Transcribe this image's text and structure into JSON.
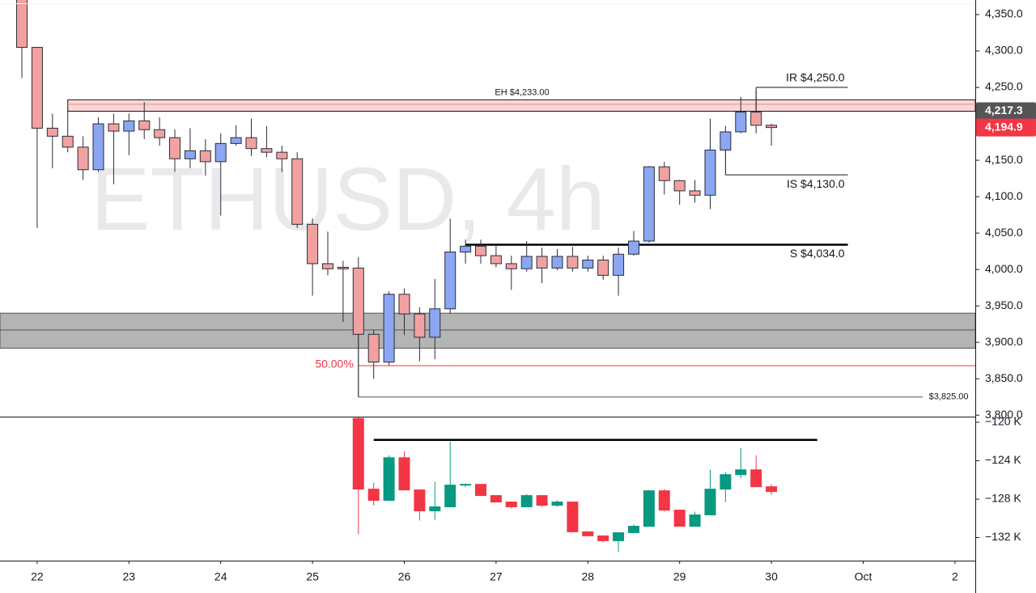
{
  "watermark": "ETHUSD, 4h",
  "chart_data": [
    {
      "type": "candlestick",
      "up_color": "#8ba6f2",
      "down_color": "#f2a1a1",
      "edge_color": "#2a2e39",
      "xlim": [
        -1.43,
        62.33
      ],
      "xticks": [
        {
          "value": 1,
          "label": "22"
        },
        {
          "value": 7,
          "label": "23"
        },
        {
          "value": 13,
          "label": "24"
        },
        {
          "value": 19,
          "label": "25"
        },
        {
          "value": 25,
          "label": "26"
        },
        {
          "value": 31,
          "label": "27"
        },
        {
          "value": 37,
          "label": "28"
        },
        {
          "value": 43,
          "label": "29"
        },
        {
          "value": 49,
          "label": "30"
        },
        {
          "value": 55,
          "label": "Oct"
        },
        {
          "value": 61,
          "label": "2"
        }
      ],
      "ylim": [
        3798,
        4370
      ],
      "yticks": [
        {
          "value": 3800,
          "label": "3,800.0"
        },
        {
          "value": 3850,
          "label": "3,850.0"
        },
        {
          "value": 3900,
          "label": "3,900.0"
        },
        {
          "value": 3950,
          "label": "3,950.0"
        },
        {
          "value": 4000,
          "label": "4,000.0"
        },
        {
          "value": 4050,
          "label": "4,050.0"
        },
        {
          "value": 4100,
          "label": "4,100.0"
        },
        {
          "value": 4150,
          "label": "4,150.0"
        },
        {
          "value": 4200,
          "label": "4,200.0"
        },
        {
          "value": 4250,
          "label": "4,250.0"
        },
        {
          "value": 4300,
          "label": "4,300.0"
        },
        {
          "value": 4350,
          "label": "4,350.0"
        }
      ],
      "open": [
        4375,
        4305,
        4194,
        4183,
        4168,
        4137,
        4200,
        4190,
        4204,
        4192,
        4181,
        4152,
        4163,
        4148,
        4173,
        4181,
        4166,
        4161,
        4152,
        4062,
        4008,
        4003,
        4002,
        3911,
        3873,
        3966,
        3939,
        3907,
        3946,
        4024,
        4032,
        4019,
        4008,
        4001,
        4018,
        4002,
        4018,
        4002,
        4013,
        3992,
        4021,
        4039,
        4141,
        4122,
        4108,
        4102,
        4164,
        4189,
        4216,
        4198
      ],
      "high": [
        4385,
        4305,
        4214,
        4220,
        4183,
        4209,
        4214,
        4214,
        4230,
        4209,
        4192,
        4194,
        4179,
        4187,
        4198,
        4207,
        4197,
        4170,
        4161,
        4070,
        4052,
        4012,
        4017,
        3917,
        3970,
        3974,
        3948,
        3987,
        4070,
        4041,
        4041,
        4032,
        4019,
        4039,
        4030,
        4028,
        4031,
        4019,
        4019,
        4030,
        4053,
        4142,
        4148,
        4123,
        4123,
        4207,
        4197,
        4237,
        4246,
        4200
      ],
      "low": [
        4263,
        4057,
        4139,
        4161,
        4123,
        4134,
        4117,
        4157,
        4179,
        4170,
        4134,
        4139,
        4129,
        4074,
        4170,
        4156,
        4154,
        4134,
        4057,
        3964,
        3992,
        3928,
        3825,
        3850,
        3868,
        3910,
        3874,
        3877,
        3939,
        4008,
        4008,
        4003,
        3972,
        3997,
        3981,
        3999,
        3997,
        3997,
        3986,
        3964,
        4019,
        4037,
        4103,
        4089,
        4092,
        4083,
        4159,
        4187,
        4187,
        4170
      ],
      "close": [
        4305,
        4194,
        4183,
        4168,
        4137,
        4200,
        4190,
        4204,
        4192,
        4181,
        4152,
        4163,
        4148,
        4173,
        4181,
        4166,
        4161,
        4152,
        4062,
        4008,
        4001,
        4001,
        3911,
        3873,
        3966,
        3939,
        3907,
        3946,
        4024,
        4032,
        4019,
        4008,
        4001,
        4018,
        4002,
        4018,
        4002,
        4013,
        3992,
        4021,
        4039,
        4141,
        4122,
        4108,
        4102,
        4164,
        4189,
        4216,
        4198,
        4194.9
      ],
      "zone": {
        "low": 3892,
        "high": 3940,
        "mid": 3917,
        "color": "#b4b4b4"
      },
      "band": {
        "label": "EH $4,233.00",
        "high": 4233,
        "low": 4217.3,
        "x0": 3,
        "color": "#f9d6d6"
      },
      "levels": [
        {
          "label": "IR $4,250.0",
          "value": 4250,
          "x0": 48,
          "x1": 54,
          "from": 4216,
          "color": "#131722"
        },
        {
          "label": "IS $4,130.0",
          "value": 4130,
          "x0": 46,
          "x1": 54,
          "from": 4164,
          "color": "#131722"
        },
        {
          "label": "S $4,034.0",
          "value": 4034,
          "x0": 29,
          "x1": 54,
          "color": "#000000",
          "width": 2.5
        },
        {
          "label": "50.00%",
          "value": 3868,
          "x0": 22,
          "color": "#f23645"
        },
        {
          "label": "$3,825.00",
          "value": 3825,
          "x0": 22,
          "x1": 59,
          "from": 3911,
          "color": "#555555"
        }
      ],
      "price_marks": [
        {
          "value": 4217.3,
          "label": "4,217.3",
          "color": "#555555"
        },
        {
          "value": 4194.9,
          "label": "4,194.9",
          "color": "#f23645"
        }
      ]
    },
    {
      "type": "candlestick",
      "up_color": "#089981",
      "down_color": "#f23645",
      "ylim": [
        -134400,
        -119500
      ],
      "yticks": [
        {
          "value": -120000,
          "label": "−120 K"
        },
        {
          "value": -124000,
          "label": "−124 K"
        },
        {
          "value": -128000,
          "label": "−128 K"
        },
        {
          "value": -132000,
          "label": "−132 K"
        }
      ],
      "open": [
        null,
        null,
        null,
        null,
        null,
        null,
        null,
        null,
        null,
        null,
        null,
        null,
        null,
        null,
        null,
        null,
        null,
        null,
        null,
        null,
        null,
        null,
        -119600,
        -126960,
        -128130,
        -123690,
        -127040,
        -129220,
        -128800,
        -126540,
        -126460,
        -127630,
        -128300,
        -128800,
        -127630,
        -128640,
        -128300,
        -131400,
        -131820,
        -132330,
        -131490,
        -130820,
        -127130,
        -129140,
        -130820,
        -129640,
        -126960,
        -125450,
        -124950,
        -126710
      ],
      "high": [
        null,
        null,
        null,
        null,
        null,
        null,
        null,
        null,
        null,
        null,
        null,
        null,
        null,
        null,
        null,
        null,
        null,
        null,
        null,
        null,
        null,
        null,
        -119500,
        -126290,
        -123440,
        -123020,
        -127040,
        -126210,
        -122010,
        -126370,
        -126460,
        -127630,
        -128300,
        -127460,
        -127630,
        -128130,
        -128300,
        -131400,
        -131820,
        -131490,
        -130650,
        -127040,
        -126960,
        -129140,
        -129310,
        -124950,
        -125200,
        -122680,
        -123440,
        -126460
      ],
      "low": [
        null,
        null,
        null,
        null,
        null,
        null,
        null,
        null,
        null,
        null,
        null,
        null,
        null,
        null,
        null,
        null,
        null,
        null,
        null,
        null,
        null,
        null,
        -131660,
        -128640,
        -128130,
        -127040,
        -130230,
        -130150,
        -128800,
        -126790,
        -127630,
        -128300,
        -128970,
        -128800,
        -128800,
        -128800,
        -131400,
        -131820,
        -132500,
        -133500,
        -131490,
        -130820,
        -129310,
        -130820,
        -130820,
        -129640,
        -128300,
        -125790,
        -126710,
        -127550
      ],
      "close": [
        null,
        null,
        null,
        null,
        null,
        null,
        null,
        null,
        null,
        null,
        null,
        null,
        null,
        null,
        null,
        null,
        null,
        null,
        null,
        null,
        null,
        null,
        -126960,
        -128130,
        -123690,
        -127040,
        -129220,
        -128800,
        -126540,
        -126460,
        -127630,
        -128300,
        -128800,
        -127630,
        -128640,
        -128300,
        -131400,
        -131820,
        -132330,
        -131490,
        -130820,
        -127130,
        -129140,
        -130820,
        -129640,
        -126960,
        -125450,
        -124950,
        -126710,
        -127210
      ],
      "levels": [
        {
          "value": -121840,
          "x0": 23,
          "x1": 52,
          "color": "#000000",
          "width": 2.5
        }
      ]
    }
  ]
}
